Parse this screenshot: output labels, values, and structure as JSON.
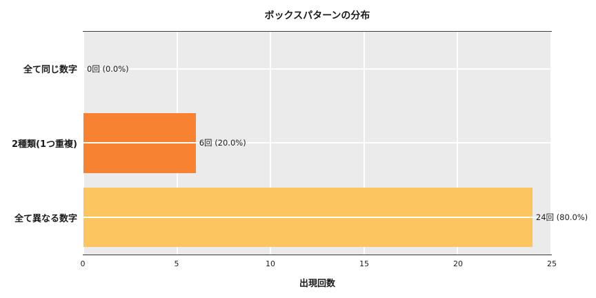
{
  "title": "ボックスパターンの分布",
  "chart_data": {
    "type": "bar",
    "orientation": "horizontal",
    "title": "ボックスパターンの分布",
    "xlabel": "出現回数",
    "ylabel": "",
    "categories": [
      "全て同じ数字",
      "2種類(1つ重複)",
      "全て異なる数字"
    ],
    "values": [
      0,
      6,
      24
    ],
    "value_labels": [
      "0回 (0.0%)",
      "6回 (20.0%)",
      "24回 (80.0%)"
    ],
    "bar_colors": [
      "#f05e16",
      "#f68232",
      "#fcc55f"
    ],
    "xlim": [
      0,
      25
    ],
    "xticks": [
      0,
      5,
      10,
      15,
      20,
      25
    ],
    "grid": true,
    "plot_background": "#ebebeb",
    "gridline_color": "#ffffff",
    "legend": null
  }
}
